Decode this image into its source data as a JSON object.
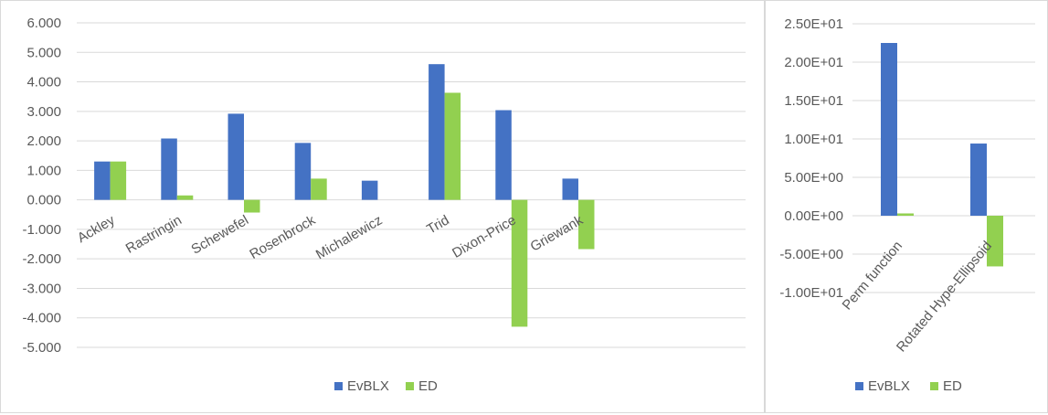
{
  "chart_data": [
    {
      "type": "bar",
      "categories": [
        "Ackley",
        "Rastringin",
        "Schewefel",
        "Rosenbrock",
        "Michalewicz",
        "Trid",
        "Dixon-Price",
        "Griewank"
      ],
      "series": [
        {
          "name": "EvBLX",
          "color": "#4472c4",
          "values": [
            1.3,
            2.08,
            2.92,
            1.93,
            0.65,
            4.6,
            3.04,
            0.72
          ]
        },
        {
          "name": "ED",
          "color": "#92d050",
          "values": [
            1.3,
            0.15,
            -0.43,
            0.72,
            0.0,
            3.63,
            -4.3,
            -1.67
          ]
        }
      ],
      "ylim": [
        -5,
        6
      ],
      "yticks": [
        6,
        5,
        4,
        3,
        2,
        1,
        0,
        -1,
        -2,
        -3,
        -4,
        -5
      ],
      "ytick_labels": [
        "6.000",
        "5.000",
        "4.000",
        "3.000",
        "2.000",
        "1.000",
        "0.000",
        "-1.000",
        "-2.000",
        "-3.000",
        "-4.000",
        "-5.000"
      ],
      "legend_position": "bottom",
      "title": "",
      "xlabel": "",
      "ylabel": ""
    },
    {
      "type": "bar",
      "categories": [
        "Perm function",
        "Rotated Hype-Ellipsoid"
      ],
      "series": [
        {
          "name": "EvBLX",
          "color": "#4472c4",
          "values": [
            22.5,
            9.4
          ]
        },
        {
          "name": "ED",
          "color": "#92d050",
          "values": [
            0.3,
            -6.6
          ]
        }
      ],
      "ylim": [
        -10,
        25
      ],
      "yticks": [
        25,
        20,
        15,
        10,
        5,
        0,
        -5,
        -10
      ],
      "ytick_labels": [
        "2.50E+01",
        "2.00E+01",
        "1.50E+01",
        "1.00E+01",
        "5.00E+00",
        "0.00E+00",
        "-5.00E+00",
        "-1.00E+01"
      ],
      "legend_position": "bottom",
      "title": "",
      "xlabel": "",
      "ylabel": ""
    }
  ]
}
